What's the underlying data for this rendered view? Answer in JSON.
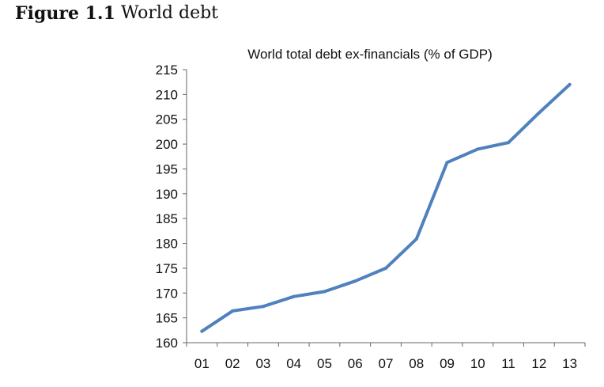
{
  "figure": {
    "label": "Figure 1.1",
    "title": "World debt"
  },
  "chart_data": {
    "type": "line",
    "title": "World total debt ex-financials (% of GDP)",
    "xlabel": "",
    "ylabel": "",
    "categories": [
      "01",
      "02",
      "03",
      "04",
      "05",
      "06",
      "07",
      "08",
      "09",
      "10",
      "11",
      "12",
      "13"
    ],
    "series": [
      {
        "values": [
          162.3,
          166.4,
          167.3,
          169.3,
          170.3,
          172.4,
          175.0,
          180.9,
          196.3,
          199.0,
          200.3,
          206.3,
          212.0
        ],
        "color": "#4f81bd"
      }
    ],
    "ylim": [
      160,
      215
    ],
    "yticks": [
      160,
      165,
      170,
      175,
      180,
      185,
      190,
      195,
      200,
      205,
      210,
      215
    ],
    "grid": false,
    "legend": "none"
  }
}
